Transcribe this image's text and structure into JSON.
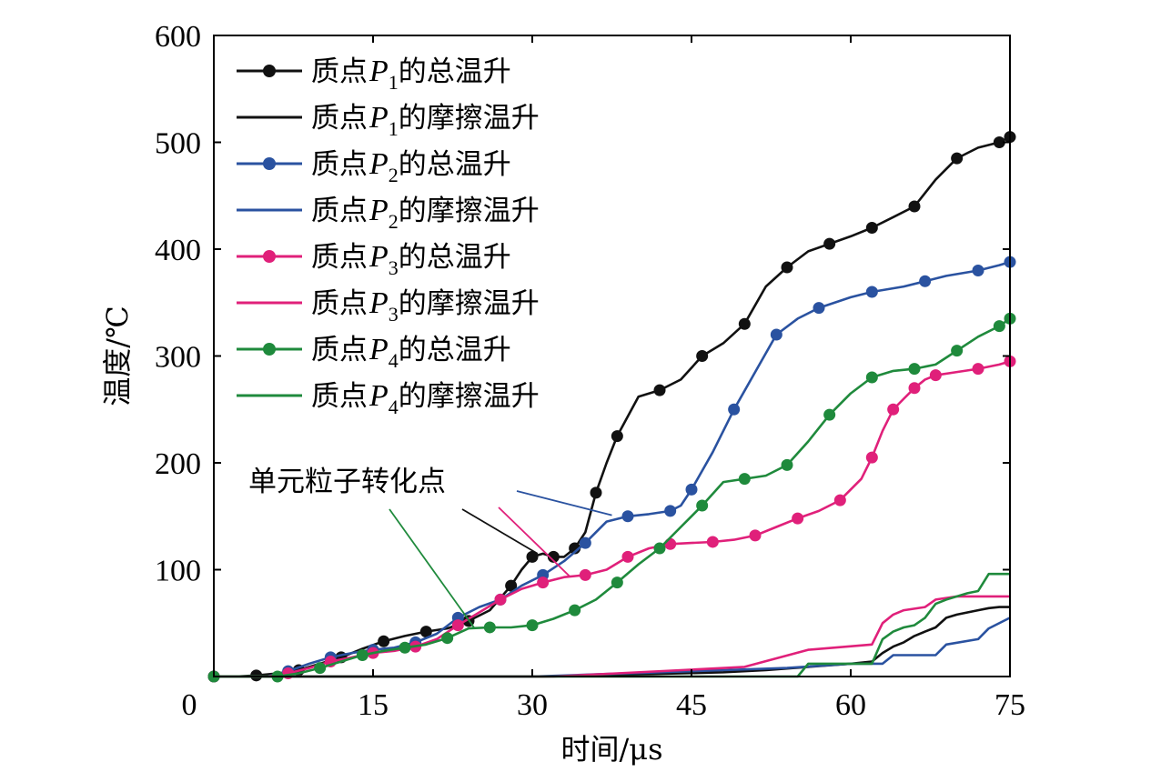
{
  "chart_data": {
    "type": "line",
    "xlabel": "时间/μs",
    "ylabel": "温度/℃",
    "xlim": [
      0,
      75
    ],
    "ylim": [
      0,
      600
    ],
    "xticks": [
      0,
      15,
      30,
      45,
      60,
      75
    ],
    "yticks": [
      100,
      200,
      300,
      400,
      500,
      600
    ],
    "xtick_labels": [
      "0",
      "15",
      "30",
      "45",
      "60",
      "75"
    ],
    "ytick_labels": [
      "100",
      "200",
      "300",
      "400",
      "500",
      "600"
    ],
    "legend_position": "top-left",
    "colors": {
      "P1": "#111111",
      "P2": "#2a52a0",
      "P3": "#e0207a",
      "P4": "#1f8a3c"
    },
    "series": [
      {
        "name": "P1-total",
        "legend_prefix": "质点",
        "legend_var": "P",
        "legend_sub": "1",
        "legend_suffix": "的总温升",
        "color_key": "P1",
        "markers": true,
        "x": [
          0,
          2,
          4,
          6,
          8,
          10,
          12,
          14,
          16,
          18,
          20,
          22,
          24,
          26,
          28,
          29,
          30,
          31,
          32,
          33,
          34,
          35,
          36,
          37,
          38,
          40,
          42,
          44,
          46,
          48,
          50,
          52,
          54,
          56,
          58,
          60,
          62,
          64,
          66,
          68,
          70,
          72,
          74,
          75
        ],
        "y": [
          0,
          0,
          1,
          3,
          6,
          12,
          18,
          26,
          33,
          38,
          42,
          45,
          52,
          62,
          85,
          100,
          112,
          115,
          112,
          112,
          120,
          135,
          172,
          200,
          225,
          262,
          268,
          278,
          300,
          312,
          330,
          365,
          383,
          398,
          405,
          412,
          420,
          430,
          440,
          465,
          485,
          495,
          500,
          505
        ]
      },
      {
        "name": "P1-friction",
        "legend_prefix": "质点",
        "legend_var": "P",
        "legend_sub": "1",
        "legend_suffix": "的摩擦温升",
        "color_key": "P1",
        "markers": false,
        "x": [
          0,
          31,
          35,
          40,
          44,
          48,
          52,
          56,
          60,
          62,
          63,
          64,
          65,
          66,
          67,
          68,
          69,
          70,
          71,
          72,
          73,
          74,
          75
        ],
        "y": [
          0,
          0,
          1,
          2,
          3,
          4,
          6,
          9,
          12,
          14,
          22,
          28,
          32,
          38,
          42,
          46,
          55,
          58,
          60,
          62,
          64,
          65,
          65
        ]
      },
      {
        "name": "P2-total",
        "legend_prefix": "质点",
        "legend_var": "P",
        "legend_sub": "2",
        "legend_suffix": "的总温升",
        "color_key": "P2",
        "markers": true,
        "x": [
          0,
          5,
          7,
          9,
          11,
          13,
          15,
          17,
          19,
          21,
          23,
          25,
          27,
          29,
          31,
          33,
          35,
          37,
          39,
          41,
          43,
          44,
          45,
          47,
          49,
          51,
          53,
          55,
          57,
          60,
          62,
          65,
          67,
          69,
          72,
          74,
          75
        ],
        "y": [
          0,
          0,
          5,
          12,
          18,
          22,
          25,
          27,
          32,
          40,
          55,
          65,
          72,
          85,
          95,
          108,
          125,
          145,
          150,
          152,
          155,
          160,
          175,
          210,
          250,
          285,
          320,
          335,
          345,
          355,
          360,
          365,
          370,
          375,
          380,
          385,
          388
        ]
      },
      {
        "name": "P2-friction",
        "legend_prefix": "质点",
        "legend_var": "P",
        "legend_sub": "2",
        "legend_suffix": "的摩擦温升",
        "color_key": "P2",
        "markers": false,
        "x": [
          0,
          30,
          36,
          42,
          48,
          54,
          60,
          63,
          64,
          68,
          69,
          72,
          73,
          75
        ],
        "y": [
          0,
          0,
          2,
          4,
          6,
          8,
          12,
          12,
          20,
          20,
          30,
          35,
          45,
          55
        ]
      },
      {
        "name": "P3-total",
        "legend_prefix": "质点",
        "legend_var": "P",
        "legend_sub": "3",
        "legend_suffix": "的总温升",
        "color_key": "P3",
        "markers": true,
        "x": [
          0,
          5,
          7,
          9,
          11,
          13,
          15,
          17,
          19,
          21,
          23,
          25,
          27,
          29,
          31,
          33,
          35,
          37,
          39,
          41,
          43,
          45,
          47,
          49,
          51,
          53,
          55,
          57,
          59,
          61,
          62,
          63,
          64,
          65,
          66,
          67,
          68,
          70,
          72,
          74,
          75
        ],
        "y": [
          0,
          0,
          3,
          8,
          14,
          18,
          22,
          24,
          28,
          35,
          48,
          60,
          72,
          82,
          88,
          93,
          95,
          100,
          112,
          120,
          124,
          125,
          126,
          128,
          132,
          140,
          148,
          155,
          165,
          185,
          205,
          230,
          250,
          260,
          270,
          278,
          282,
          285,
          288,
          292,
          295
        ]
      },
      {
        "name": "P3-friction",
        "legend_prefix": "质点",
        "legend_var": "P",
        "legend_sub": "3",
        "legend_suffix": "的摩擦温升",
        "color_key": "P3",
        "markers": false,
        "x": [
          0,
          32,
          38,
          44,
          50,
          56,
          62,
          63,
          64,
          65,
          67,
          68,
          70,
          75
        ],
        "y": [
          0,
          0,
          3,
          6,
          9,
          25,
          30,
          50,
          58,
          62,
          65,
          72,
          75,
          75
        ]
      },
      {
        "name": "P4-total",
        "legend_prefix": "质点",
        "legend_var": "P",
        "legend_sub": "4",
        "legend_suffix": "的总温升",
        "color_key": "P4",
        "markers": true,
        "x": [
          0,
          4,
          6,
          8,
          10,
          12,
          14,
          16,
          18,
          20,
          22,
          24,
          26,
          28,
          30,
          32,
          34,
          36,
          38,
          40,
          42,
          44,
          46,
          48,
          50,
          52,
          54,
          56,
          58,
          60,
          62,
          64,
          66,
          68,
          70,
          72,
          74,
          75
        ],
        "y": [
          0,
          0,
          0,
          3,
          8,
          14,
          20,
          24,
          27,
          30,
          36,
          45,
          46,
          46,
          48,
          54,
          62,
          72,
          88,
          105,
          120,
          140,
          160,
          182,
          185,
          188,
          198,
          220,
          245,
          265,
          280,
          286,
          288,
          292,
          305,
          318,
          328,
          335
        ]
      },
      {
        "name": "P4-friction",
        "legend_prefix": "质点",
        "legend_var": "P",
        "legend_sub": "4",
        "legend_suffix": "的摩擦温升",
        "color_key": "P4",
        "markers": false,
        "x": [
          0,
          55,
          56,
          62,
          63,
          64,
          65,
          66,
          67,
          68,
          69,
          70,
          71,
          72,
          73,
          75
        ],
        "y": [
          0,
          0,
          12,
          12,
          35,
          42,
          46,
          48,
          55,
          68,
          72,
          75,
          78,
          80,
          96,
          96
        ]
      }
    ],
    "annotations": [
      {
        "text": "单元粒子转化点",
        "arrows": [
          {
            "color_key": "P2",
            "to_x": 37.5,
            "to_y": 151
          },
          {
            "color_key": "P1",
            "to_x": 30.5,
            "to_y": 115
          },
          {
            "color_key": "P3",
            "to_x": 33.5,
            "to_y": 94
          },
          {
            "color_key": "P4",
            "to_x": 24.5,
            "to_y": 46
          }
        ]
      }
    ]
  }
}
